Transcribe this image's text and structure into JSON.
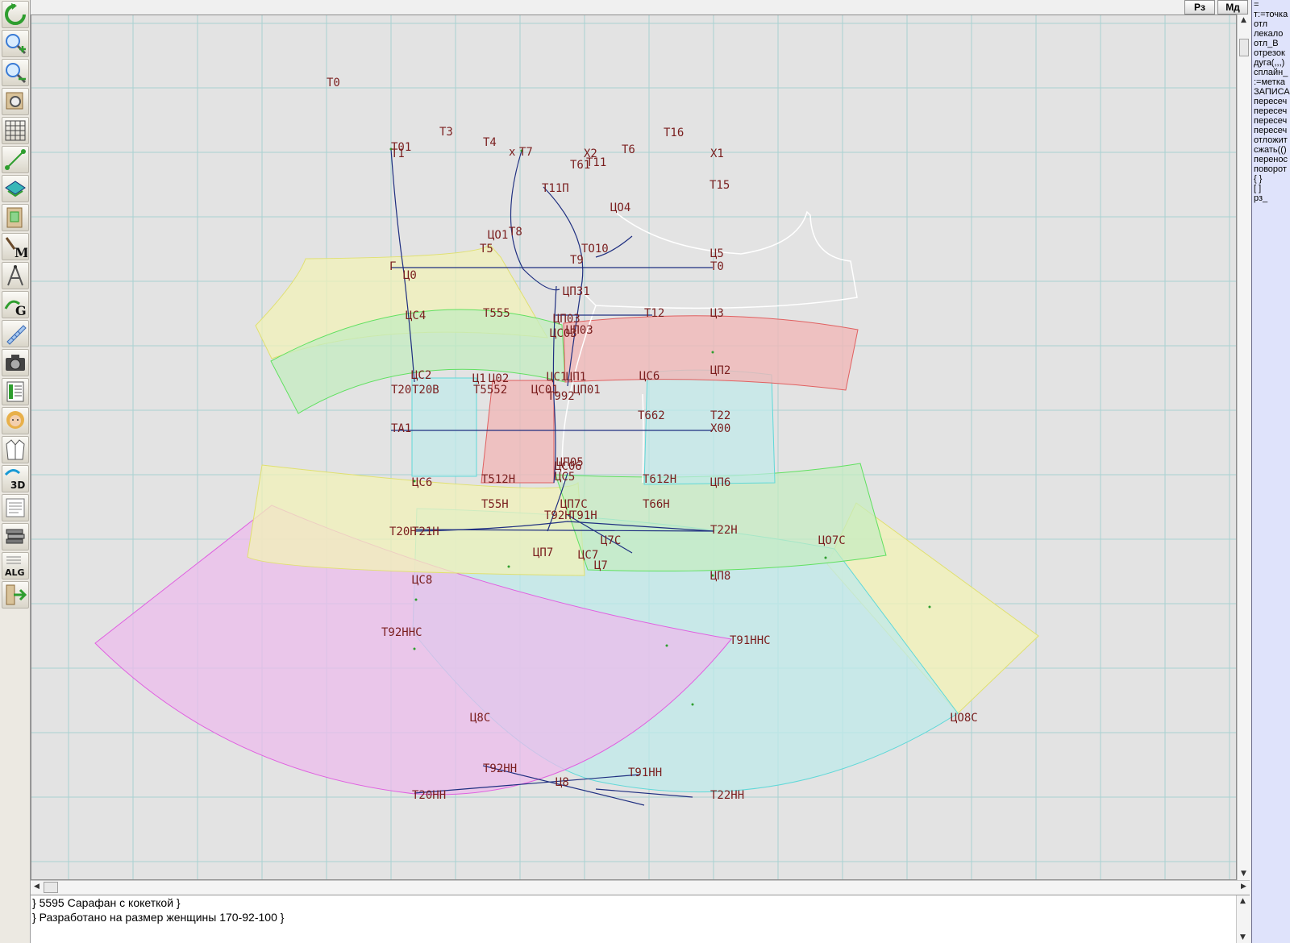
{
  "topbar": {
    "rz_label": "Рз",
    "md_label": "Мд"
  },
  "toolbar": {
    "tools": [
      {
        "name": "refresh",
        "color": "#2f9e2f"
      },
      {
        "name": "zoom-in",
        "color": "#3a7bd5"
      },
      {
        "name": "zoom-out",
        "color": "#3a7bd5"
      },
      {
        "name": "zoom-fit",
        "color": "#8a6a3a"
      },
      {
        "name": "grid",
        "color": "#444444"
      },
      {
        "name": "segment",
        "color": "#2f9e2f"
      },
      {
        "name": "layer",
        "color": "#1aa3a3"
      },
      {
        "name": "pattern",
        "color": "#2f9e2f"
      },
      {
        "name": "macro-m",
        "color": "#6a4a2a"
      },
      {
        "name": "compass",
        "color": "#555555"
      },
      {
        "name": "macro-g",
        "color": "#2f9e2f"
      },
      {
        "name": "measure",
        "color": "#3a6ab5"
      },
      {
        "name": "camera",
        "color": "#333333"
      },
      {
        "name": "table",
        "color": "#2f9e2f"
      },
      {
        "name": "avatar",
        "color": "#c98a5a"
      },
      {
        "name": "garment",
        "color": "#555555"
      },
      {
        "name": "3d",
        "color": "#1a6ab5"
      },
      {
        "name": "text-doc",
        "color": "#666666"
      },
      {
        "name": "layers",
        "color": "#555555"
      },
      {
        "name": "alg",
        "color": "#333333"
      },
      {
        "name": "exit",
        "color": "#2f9e2f"
      }
    ]
  },
  "alg_label": "ALG",
  "m_label": "M",
  "g_label": "G",
  "threed_label": "3D",
  "right_panel": {
    "commands": [
      "=",
      "т:=точка",
      "отл",
      "лекало",
      "отл_В",
      "отрезок",
      "дуга(,,,)",
      "сплайн_",
      ":=метка",
      "ЗАПИСА",
      "пересеч",
      "пересеч",
      "пересеч",
      "пересеч",
      "отложит",
      "сжать(()",
      "перенос",
      "поворот",
      "{ }",
      "[ ]",
      "рз_"
    ]
  },
  "code_area": {
    "lines": [
      "} 5595  Сарафан с кокеткой }",
      "} Разработано на размер женщины 170-92-100 }"
    ]
  },
  "colors": {
    "yellow_fill": "#f1f1b8",
    "yellow_stroke": "#e0e070",
    "green_fill": "#c4ecc0",
    "green_stroke": "#60e060",
    "red_fill": "#f0b8b8",
    "red_stroke": "#e06060",
    "cyan_fill": "#bfeaea",
    "cyan_stroke": "#60d8d8",
    "magenta_fill": "#ecbcec",
    "magenta_stroke": "#e060e0",
    "blue_line": "#1f2f80",
    "white_line": "#ffffff",
    "grid_line": "#a8d2d2",
    "label": "#7a1e1e"
  },
  "canvas": {
    "labels": [
      "Т0",
      "Т01",
      "Т1",
      "Т3",
      "Т4",
      "х",
      "Т7",
      "Х2",
      "Т6",
      "Т61",
      "Т11",
      "Т16",
      "Х1",
      "Т11П",
      "Т15",
      "ЦО4",
      "ЦО1",
      "Т8",
      "Т5",
      "ТО10",
      "Т9",
      "Ц5",
      "Т0",
      "Г",
      "Ц0",
      "ЦП31",
      "ЦС4",
      "Т555",
      "ЦП03",
      "Т12",
      "Ц3",
      "ЦС03",
      "ЦП03",
      "ЦС2",
      "Ц1",
      "Ц02",
      "ЦС1",
      "ЦП1",
      "ЦС6",
      "ЦП2",
      "Т20",
      "Т20В",
      "Т5552",
      "ЦС01",
      "ЦП01",
      "Т992",
      "Т22",
      "Т662",
      "ТА1",
      "Х00",
      "ЦП05",
      "ЦС06",
      "ЦС6",
      "Т512Н",
      "ЦС5",
      "Т612Н",
      "ЦП6",
      "Т55Н",
      "ЦП7С",
      "Т66Н",
      "Т92Н",
      "Т91Н",
      "Т20Н",
      "Т21Н",
      "Т22Н",
      "Ц7С",
      "ЦО7С",
      "ЦП7",
      "ЦС7",
      "Ц7",
      "ЦС8",
      "ЦП8",
      "Т92ННС",
      "Т91ННС",
      "Ц8С",
      "ЦО8С",
      "Т92НН",
      "Т91НН",
      "Ц8",
      "Т20НН",
      "Т22НН"
    ]
  }
}
